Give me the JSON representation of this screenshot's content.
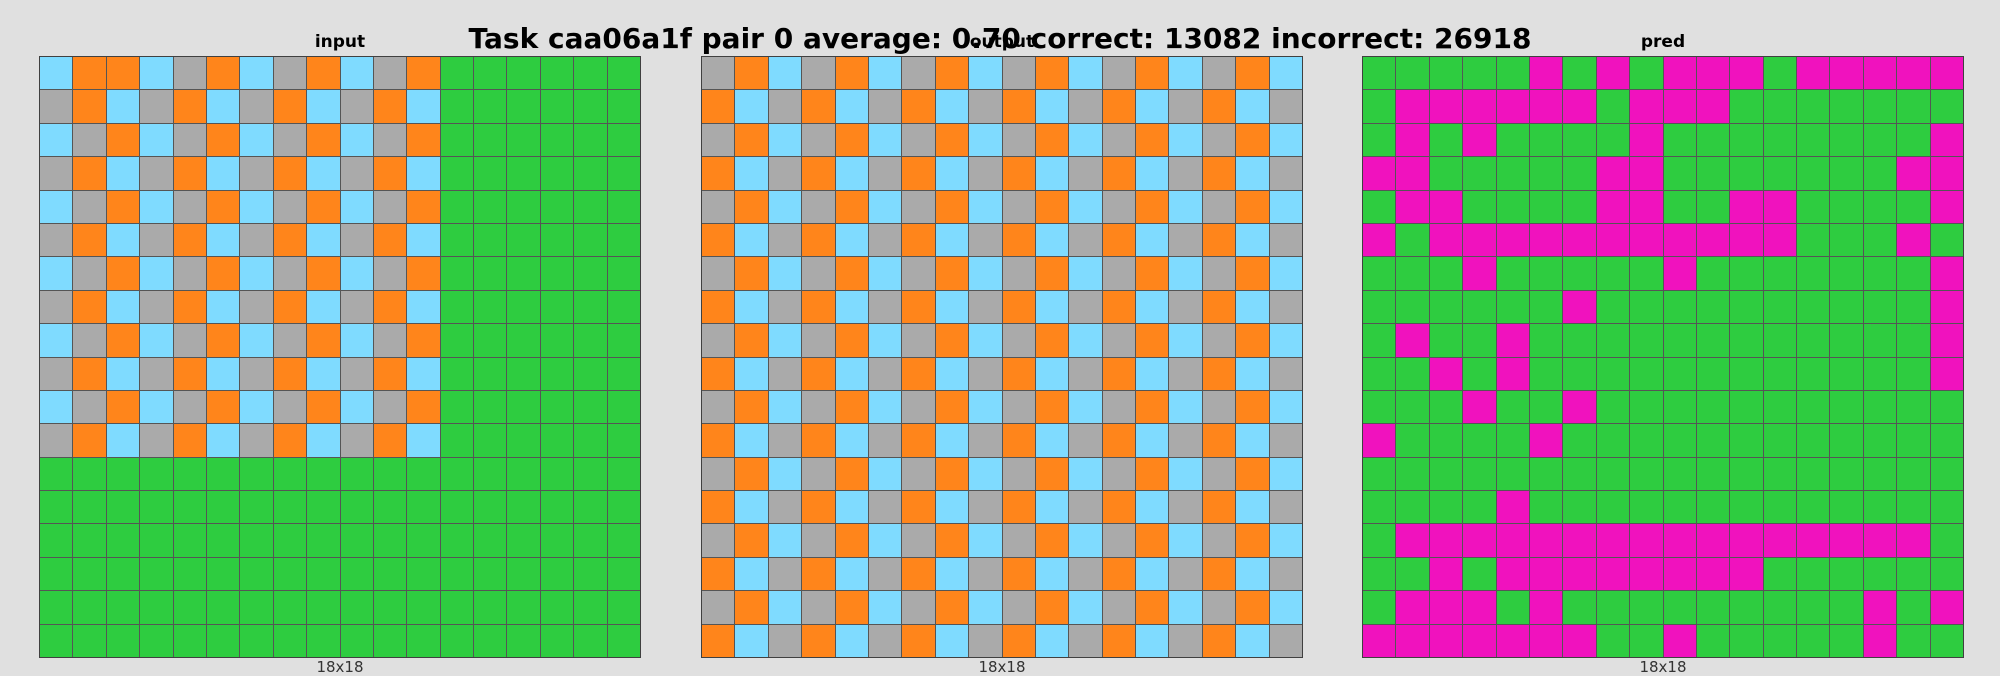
{
  "title": "Task caa06a1f pair 0 average: 0.70 correct: 13082 incorrect: 26918",
  "colors": {
    "G": "#2ecc40",
    "O": "#ff851b",
    "B": "#7fdbff",
    "S": "#aaaaaa",
    "M": "#f012be"
  },
  "panels": [
    {
      "label": "input",
      "size": "18x18",
      "rows": [
        "BOOBSOBSOBSOGGGGGG",
        "SOBSOBSOBSOBGGGGGG",
        "BSOBSOBSOBSOGGGGGG",
        "SOBSOBSOBSOBGGGGGG",
        "BSOBSOBSOBSOGGGGGG",
        "SOBSOBSOBSOBGGGGGG",
        "BSOBSOBSOBSOGGGGGG",
        "SOBSOBSOBSOBGGGGGG",
        "BSOBSOBSOBSOGGGGGG",
        "SOBSOBSOBSOBGGGGGG",
        "BSOBSOBSOBSOGGGGGG",
        "SOBSOBSOBSOBGGGGGG",
        "GGGGGGGGGGGGGGGGGG",
        "GGGGGGGGGGGGGGGGGG",
        "GGGGGGGGGGGGGGGGGG",
        "GGGGGGGGGGGGGGGGGG",
        "GGGGGGGGGGGGGGGGGG",
        "GGGGGGGGGGGGGGGGGG"
      ]
    },
    {
      "label": "output",
      "size": "18x18",
      "rows": [
        "SOBSOBSOBSOBSOBSOB",
        "OBSOBSOBSOBSOBSOBS",
        "SOBSOBSOBSOBSOBSOB",
        "OBSOBSOBSOBSOBSOBS",
        "SOBSOBSOBSOBSOBSOB",
        "OBSOBSOBSOBSOBSOBS",
        "SOBSOBSOBSOBSOBSOB",
        "OBSOBSOBSOBSOBSOBS",
        "SOBSOBSOBSOBSOBSOB",
        "OBSOBSOBSOBSOBSOBS",
        "SOBSOBSOBSOBSOBSOB",
        "OBSOBSOBSOBSOBSOBS",
        "SOBSOBSOBSOBSOBSOB",
        "OBSOBSOBSOBSOBSOBS",
        "SOBSOBSOBSOBSOBSOB",
        "OBSOBSOBSOBSOBSOBS",
        "SOBSOBSOBSOBSOBSOB",
        "OBSOBSOBSOBSOBSOBS"
      ]
    },
    {
      "label": "pred",
      "size": "18x18",
      "rows": [
        "GGGGGMGMGMMMGMMMMM",
        "GMMMMMMGMMMGGGGGGG",
        "GMGMGGGGMGGGGGGGGM",
        "MMGGGGGMMGGGGGGGMM",
        "GMMGGGGMMGGMMGGGGM",
        "MGMMMMMMMMMMMGGGMG",
        "GGGMGGGGGMGGGGGGGM",
        "GGGGGGMGGGGGGGGGGM",
        "GMGGMGGGGGGGGGGGGM",
        "GGMGMGGGGGGGGGGGGM",
        "GGGMGGMGGGGGGGGGGG",
        "MGGGGMGGGGGGGGGGGG",
        "GGGGGGGGGGGGGGGGGG",
        "GGGGMGGGGGGGGGGGGG",
        "GMMMMMMMMMMMMMMMMG",
        "GGMGMMMMMMMMGGGGGG",
        "GMMMGMGGGGGGGGGMGM",
        "MMMMMMMGGMGGGGGMGG"
      ]
    }
  ]
}
